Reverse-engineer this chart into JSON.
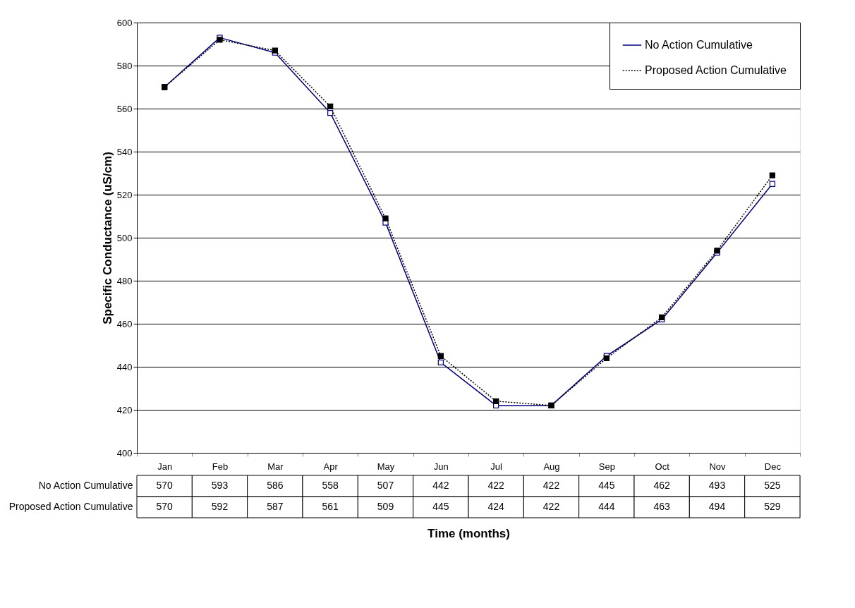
{
  "chart_data": {
    "type": "line",
    "xlabel": "Time (months)",
    "ylabel": "Specific Conductance (uS/cm)",
    "categories": [
      "Jan",
      "Feb",
      "Mar",
      "Apr",
      "May",
      "Jun",
      "Jul",
      "Aug",
      "Sep",
      "Oct",
      "Nov",
      "Dec"
    ],
    "series": [
      {
        "name": "No Action Cumulative",
        "color": "#000080",
        "line_style": "solid",
        "values": [
          570,
          593,
          586,
          558,
          507,
          442,
          422,
          422,
          445,
          462,
          493,
          525
        ]
      },
      {
        "name": "Proposed Action Cumulative",
        "color": "#000000",
        "line_style": "dotted",
        "values": [
          570,
          592,
          587,
          561,
          509,
          445,
          424,
          422,
          444,
          463,
          494,
          529
        ]
      }
    ],
    "ylim": [
      400,
      600
    ],
    "yticks": [
      400,
      420,
      440,
      460,
      480,
      500,
      520,
      540,
      560,
      580,
      600
    ],
    "grid": "y",
    "legend": "top right",
    "marker": "square",
    "data_labels": true
  }
}
